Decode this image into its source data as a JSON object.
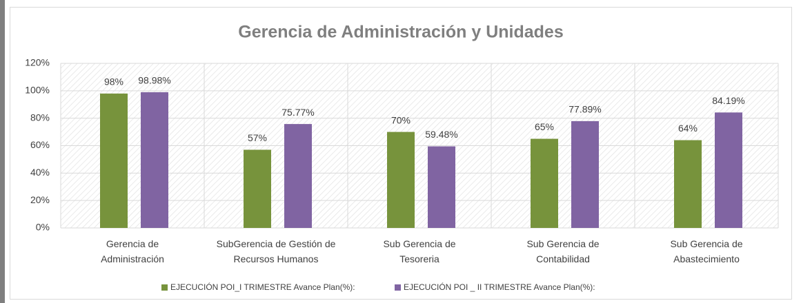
{
  "chart_data": {
    "type": "bar",
    "title": "Gerencia de Administración y Unidades",
    "categories": [
      [
        "Gerencia de",
        "Administración"
      ],
      [
        "SubGerencia de Gestión de",
        "Recursos Humanos"
      ],
      [
        "Sub Gerencia de",
        "Tesoreria"
      ],
      [
        "Sub Gerencia de",
        "Contabilidad"
      ],
      [
        "Sub Gerencia de",
        "Abastecimiento"
      ]
    ],
    "series": [
      {
        "name": "EJECUCIÓN POI_I TRIMESTRE Avance Plan(%):",
        "color": "#77933c",
        "values": [
          98,
          57,
          70,
          65,
          64
        ],
        "value_labels": [
          "98%",
          "57%",
          "70%",
          "65%",
          "64%"
        ]
      },
      {
        "name": "EJECUCIÓN POI _ II TRIMESTRE Avance Plan(%):",
        "color": "#8064a2",
        "values": [
          98.98,
          75.77,
          59.48,
          77.89,
          84.19
        ],
        "value_labels": [
          "98.98%",
          "75.77%",
          "59.48%",
          "77.89%",
          "84.19%"
        ]
      }
    ],
    "ylim": [
      0,
      120
    ],
    "yticks": [
      {
        "value": 0,
        "label": "0%"
      },
      {
        "value": 20,
        "label": "20%"
      },
      {
        "value": 40,
        "label": "40%"
      },
      {
        "value": 60,
        "label": "60%"
      },
      {
        "value": 80,
        "label": "80%"
      },
      {
        "value": 100,
        "label": "100%"
      },
      {
        "value": 120,
        "label": "120%"
      }
    ],
    "grid": true,
    "legend": "bottom"
  }
}
